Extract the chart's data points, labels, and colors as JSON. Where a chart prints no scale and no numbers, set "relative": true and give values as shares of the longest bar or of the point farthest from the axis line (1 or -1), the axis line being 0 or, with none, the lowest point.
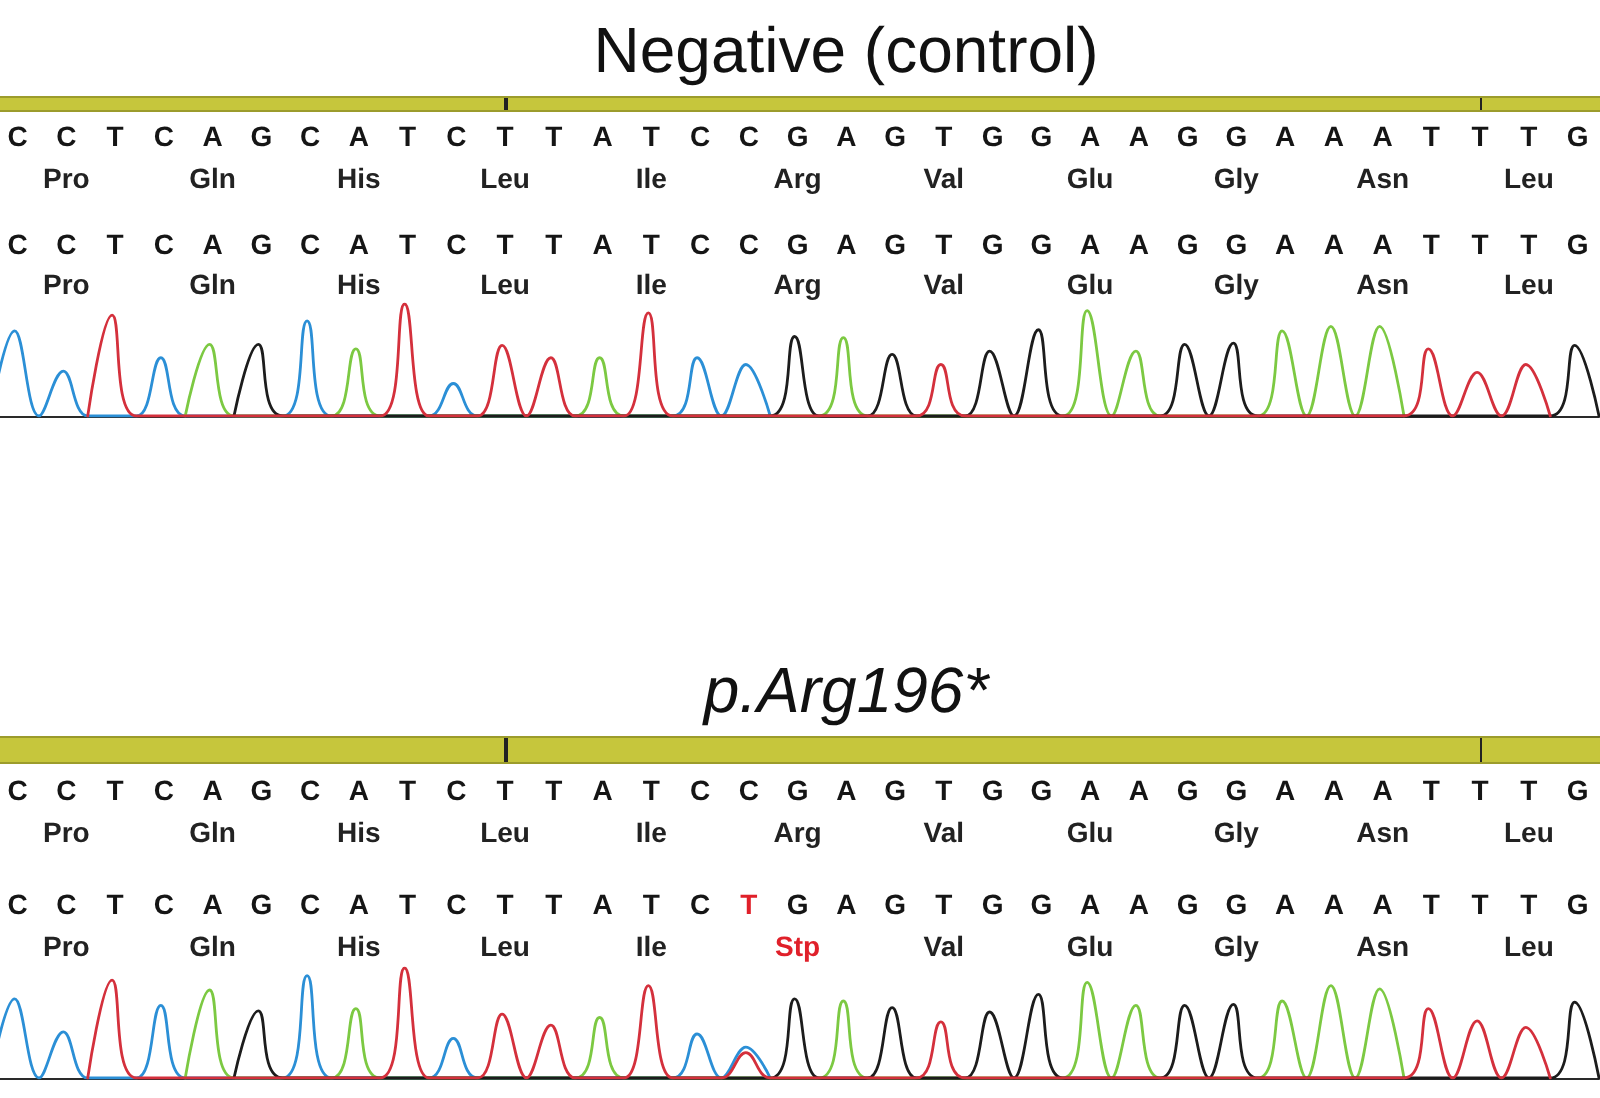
{
  "chart_data": [
    {
      "type": "line",
      "title": "Negative (control)",
      "relative": true,
      "categories": [
        null,
        null,
        null,
        null,
        null,
        null,
        null,
        null,
        null,
        null,
        null,
        null,
        null,
        null,
        null,
        null,
        null,
        null,
        null,
        null,
        null,
        null,
        null,
        null,
        null,
        null,
        null,
        null,
        null,
        null,
        null,
        null,
        null,
        null,
        null,
        null,
        null,
        null,
        null,
        null,
        null,
        null,
        null,
        null,
        null,
        null,
        null,
        null,
        null,
        null,
        null,
        null,
        null,
        null,
        null,
        null,
        null,
        null,
        null,
        null,
        null,
        null,
        null,
        null,
        null,
        null,
        null
      ],
      "series": [
        {
          "color": "#2b8fd6",
          "values": [
            0,
            0.76,
            0,
            0.4,
            0,
            null,
            0,
            0.52,
            0,
            null,
            null,
            null,
            0,
            0.85,
            0,
            null,
            null,
            null,
            0,
            0.29,
            0,
            null,
            null,
            null,
            null,
            null,
            null,
            null,
            0,
            0.52,
            0,
            0.46,
            0,
            null,
            null,
            null,
            null,
            null,
            null,
            null,
            null,
            null,
            null,
            null,
            null,
            null,
            null,
            null,
            null,
            null,
            null,
            null,
            null,
            null,
            null,
            null,
            null,
            null,
            null,
            null,
            null,
            null,
            null,
            null,
            null,
            null,
            null
          ]
        },
        {
          "color": "#7cc942",
          "values": [
            null,
            null,
            null,
            null,
            null,
            null,
            null,
            null,
            0,
            0.64,
            0,
            null,
            null,
            null,
            0,
            0.6,
            0,
            null,
            null,
            null,
            null,
            null,
            null,
            null,
            0,
            0.52,
            0,
            null,
            null,
            null,
            null,
            null,
            null,
            null,
            0,
            0.7,
            0,
            null,
            null,
            null,
            null,
            null,
            null,
            null,
            0,
            0.94,
            0,
            0.58,
            0,
            null,
            null,
            null,
            0,
            0.76,
            0,
            0.8,
            0,
            0.8,
            0,
            null,
            null,
            null,
            null,
            null,
            null,
            null,
            null
          ]
        },
        {
          "color": "#1c1c1c",
          "values": [
            null,
            null,
            null,
            null,
            null,
            null,
            null,
            null,
            null,
            null,
            0,
            0.64,
            0,
            null,
            null,
            null,
            null,
            null,
            null,
            null,
            null,
            null,
            null,
            null,
            null,
            null,
            null,
            null,
            null,
            null,
            null,
            null,
            0,
            0.71,
            0,
            null,
            0,
            0.55,
            0,
            null,
            0,
            0.58,
            0,
            0.77,
            0,
            null,
            null,
            null,
            0,
            0.64,
            0,
            0.65,
            0,
            null,
            null,
            null,
            null,
            null,
            null,
            null,
            null,
            null,
            null,
            null,
            0,
            0.63,
            0
          ]
        },
        {
          "color": "#d4303c",
          "values": [
            null,
            null,
            null,
            null,
            0,
            0.9,
            0,
            null,
            null,
            null,
            null,
            null,
            null,
            null,
            null,
            null,
            0,
            1,
            0,
            null,
            0,
            0.63,
            0,
            0.52,
            0,
            null,
            0,
            0.92,
            0,
            null,
            null,
            null,
            null,
            null,
            null,
            null,
            null,
            null,
            0,
            0.46,
            0,
            null,
            null,
            null,
            null,
            null,
            null,
            null,
            null,
            null,
            null,
            null,
            null,
            null,
            null,
            null,
            null,
            null,
            0,
            0.6,
            0,
            0.39,
            0,
            0.46,
            0,
            null,
            null
          ]
        }
      ],
      "annotations": [
        "C C T C A G C A T C T T A T C C G A G T G G A A G G A A A T T T G",
        "Pro Gln His Leu Ile Arg Val Glu Gly Asn Leu",
        "C C T C A G C A T C T T A T C C G A G T G G A A G G A A A T T T G",
        "Pro Gln His Leu Ile Arg Val Glu Gly Asn Leu"
      ]
    },
    {
      "type": "line",
      "title": "p.Arg196*",
      "relative": true,
      "categories": [
        null,
        null,
        null,
        null,
        null,
        null,
        null,
        null,
        null,
        null,
        null,
        null,
        null,
        null,
        null,
        null,
        null,
        null,
        null,
        null,
        null,
        null,
        null,
        null,
        null,
        null,
        null,
        null,
        null,
        null,
        null,
        null,
        null,
        null,
        null,
        null,
        null,
        null,
        null,
        null,
        null,
        null,
        null,
        null,
        null,
        null,
        null,
        null,
        null,
        null,
        null,
        null,
        null,
        null,
        null,
        null,
        null,
        null,
        null,
        null,
        null,
        null,
        null,
        null,
        null,
        null,
        null
      ],
      "series": [
        {
          "color": "#2b8fd6",
          "values": [
            0,
            0.72,
            0,
            0.42,
            0,
            null,
            0,
            0.66,
            0,
            null,
            null,
            null,
            0,
            0.93,
            0,
            null,
            null,
            null,
            0,
            0.36,
            0,
            null,
            null,
            null,
            null,
            null,
            null,
            null,
            0,
            0.4,
            0,
            0.28,
            0,
            null,
            null,
            null,
            null,
            null,
            null,
            null,
            null,
            null,
            null,
            null,
            null,
            null,
            null,
            null,
            null,
            null,
            null,
            null,
            null,
            null,
            null,
            null,
            null,
            null,
            null,
            null,
            null,
            null,
            null,
            null,
            null,
            null,
            null
          ]
        },
        {
          "color": "#7cc942",
          "values": [
            null,
            null,
            null,
            null,
            null,
            null,
            null,
            null,
            0,
            0.8,
            0,
            null,
            null,
            null,
            0,
            0.63,
            0,
            null,
            null,
            null,
            null,
            null,
            null,
            null,
            0,
            0.55,
            0,
            null,
            null,
            null,
            null,
            null,
            null,
            null,
            0,
            0.7,
            0,
            null,
            null,
            null,
            null,
            null,
            null,
            null,
            0,
            0.87,
            0,
            0.66,
            0,
            null,
            null,
            null,
            0,
            0.7,
            0,
            0.84,
            0,
            0.81,
            0,
            null,
            null,
            null,
            null,
            null,
            null,
            null,
            null
          ]
        },
        {
          "color": "#1c1c1c",
          "values": [
            null,
            null,
            null,
            null,
            null,
            null,
            null,
            null,
            null,
            null,
            0,
            0.61,
            0,
            null,
            null,
            null,
            null,
            null,
            null,
            null,
            null,
            null,
            null,
            null,
            null,
            null,
            null,
            null,
            null,
            null,
            null,
            null,
            0,
            0.72,
            0,
            null,
            0,
            0.64,
            0,
            null,
            0,
            0.6,
            0,
            0.76,
            0,
            null,
            null,
            null,
            0,
            0.66,
            0,
            0.67,
            0,
            null,
            null,
            null,
            null,
            null,
            null,
            null,
            null,
            null,
            null,
            null,
            0,
            0.69,
            0
          ]
        },
        {
          "color": "#d4303c",
          "values": [
            null,
            null,
            null,
            null,
            0,
            0.89,
            0,
            null,
            null,
            null,
            null,
            null,
            null,
            null,
            null,
            null,
            0,
            1,
            0,
            null,
            0,
            0.58,
            0,
            0.48,
            0,
            null,
            0,
            0.84,
            0,
            null,
            0,
            0.23,
            0,
            null,
            null,
            null,
            null,
            null,
            0,
            0.51,
            0,
            null,
            null,
            null,
            null,
            null,
            null,
            null,
            null,
            null,
            null,
            null,
            null,
            null,
            null,
            null,
            null,
            null,
            0,
            0.63,
            0,
            0.52,
            0,
            0.46,
            0,
            null,
            null
          ]
        }
      ],
      "annotations": [
        "C C T C A G C A T C T T A T C C G A G T G G A A G G A A A T T T G",
        "Pro Gln His Leu Ile Arg Val Glu Gly Asn Leu",
        "C C T C A G C A T C T T A T C T G A G T G G A A G G A A A T T T G",
        "Pro Gln His Leu Ile Stp Val Glu Gly Asn Leu"
      ]
    }
  ]
}
